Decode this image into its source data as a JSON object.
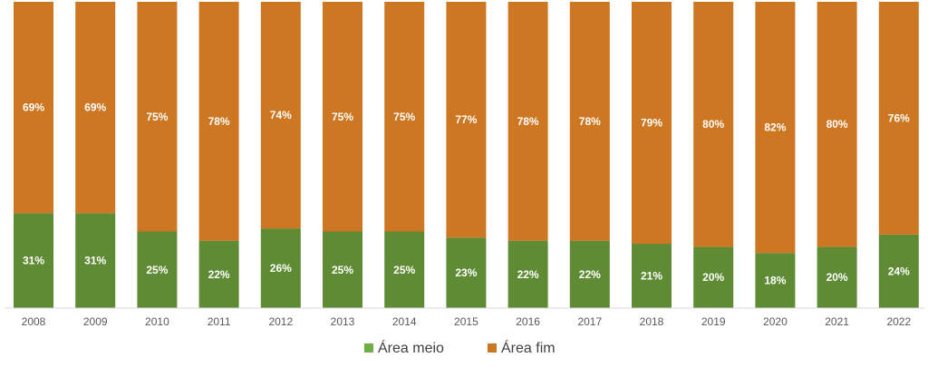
{
  "chart_data": {
    "type": "bar",
    "stacked": true,
    "percent_stacked": true,
    "categories": [
      "2008",
      "2009",
      "2010",
      "2011",
      "2012",
      "2013",
      "2014",
      "2015",
      "2016",
      "2017",
      "2018",
      "2019",
      "2020",
      "2021",
      "2022"
    ],
    "series": [
      {
        "name": "Área meio",
        "color": "#5f8b35",
        "values": [
          31,
          31,
          25,
          22,
          26,
          25,
          25,
          23,
          22,
          22,
          21,
          20,
          18,
          20,
          24
        ]
      },
      {
        "name": "Área fim",
        "color": "#cd7722",
        "values": [
          69,
          69,
          75,
          78,
          74,
          75,
          75,
          77,
          78,
          78,
          79,
          80,
          82,
          80,
          76
        ]
      }
    ],
    "data_labels": true,
    "value_suffix": "%",
    "ylim": [
      0,
      100
    ],
    "grid": false,
    "legend_position": "bottom",
    "legend_marker_color_meio": "#70ad47",
    "legend_marker_color_fim": "#cd7722"
  }
}
